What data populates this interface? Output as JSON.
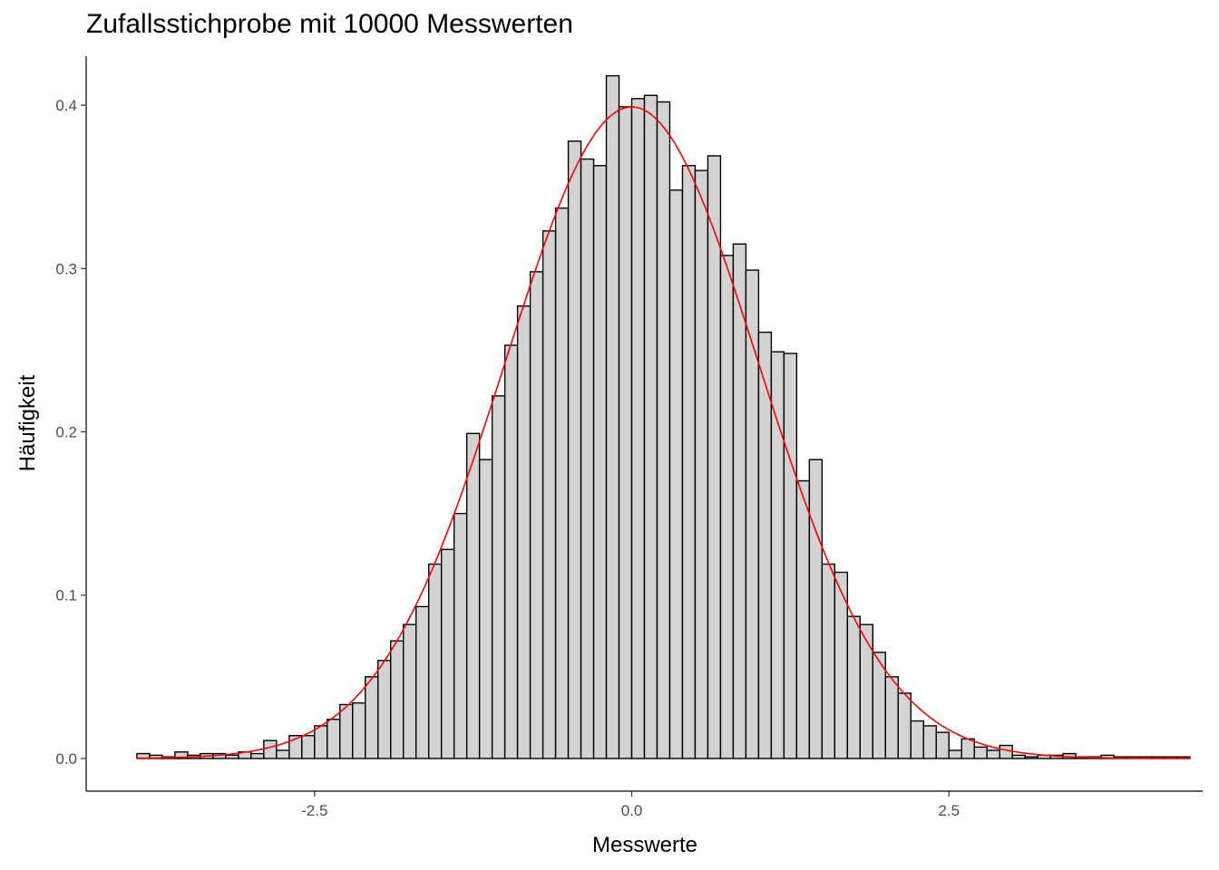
{
  "chart_data": {
    "type": "bar",
    "title": "Zufallsstichprobe mit 10000 Messwerten",
    "xlabel": "Messwerte",
    "ylabel": "Häufigkeit",
    "xlim": [
      -4.3,
      4.5
    ],
    "ylim": [
      -0.02,
      0.43
    ],
    "x_ticks": [
      -2.5,
      0.0,
      2.5
    ],
    "x_tick_labels": [
      "-2.5",
      "0.0",
      "2.5"
    ],
    "y_ticks": [
      0.0,
      0.1,
      0.2,
      0.3,
      0.4
    ],
    "y_tick_labels": [
      "0.0",
      "0.1",
      "0.2",
      "0.3",
      "0.4"
    ],
    "grid": false,
    "bin_start": -3.9,
    "bin_width": 0.1,
    "bar_fill": "#d3d3d3",
    "bar_stroke": "#000000",
    "values": [
      0.003,
      0.002,
      0.001,
      0.004,
      0.002,
      0.003,
      0.003,
      0.002,
      0.004,
      0.003,
      0.011,
      0.005,
      0.014,
      0.014,
      0.02,
      0.024,
      0.033,
      0.034,
      0.05,
      0.06,
      0.072,
      0.082,
      0.093,
      0.119,
      0.128,
      0.15,
      0.199,
      0.183,
      0.222,
      0.253,
      0.277,
      0.298,
      0.323,
      0.337,
      0.378,
      0.367,
      0.363,
      0.418,
      0.399,
      0.404,
      0.406,
      0.402,
      0.348,
      0.363,
      0.36,
      0.369,
      0.308,
      0.315,
      0.299,
      0.261,
      0.249,
      0.248,
      0.17,
      0.183,
      0.119,
      0.114,
      0.087,
      0.082,
      0.065,
      0.05,
      0.04,
      0.023,
      0.02,
      0.016,
      0.005,
      0.012,
      0.007,
      0.005,
      0.008,
      0.002,
      0.001,
      0.002,
      0.002,
      0.003,
      0.001,
      0.001,
      0.002,
      0.001,
      0.001,
      0.001,
      0.001,
      0.001,
      0.001
    ],
    "overlay": {
      "type": "line",
      "curve": "normal density",
      "mean": 0,
      "sd": 1,
      "color": "#ff0000"
    }
  }
}
